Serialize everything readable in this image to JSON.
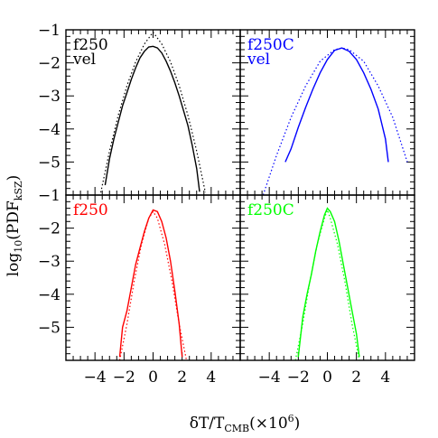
{
  "chart_data": {
    "type": "line",
    "layout": "2x2 panel grid, shared axes",
    "xlabel_parts": {
      "delta": "δ",
      "t": "T/T",
      "sub": "CMB",
      "factor": "(×10",
      "power": "6",
      "close": ")"
    },
    "ylabel_parts": {
      "func": "log",
      "base": "10",
      "open": "(PDF",
      "sub": "kSZ",
      "close": ")"
    },
    "xlim": [
      -6,
      6
    ],
    "ylim": [
      -6,
      -1
    ],
    "x_ticks": [
      -4,
      -2,
      0,
      2,
      4
    ],
    "x_tick_labels": [
      "−4",
      "−2",
      "0",
      "2",
      "4"
    ],
    "y_ticks": [
      -1,
      -2,
      -3,
      -4,
      -5
    ],
    "y_tick_labels": [
      "−1",
      "−2",
      "−3",
      "−4",
      "−5"
    ],
    "grid": false,
    "panels": [
      {
        "id": "top-left",
        "row": 0,
        "col": 0,
        "label_lines": [
          "f250",
          "vel"
        ],
        "color": "#000000",
        "series": [
          {
            "style": "solid",
            "x": [
              -3.3,
              -3.0,
              -2.7,
              -2.4,
              -2.1,
              -1.8,
              -1.5,
              -1.2,
              -0.9,
              -0.6,
              -0.3,
              0.0,
              0.3,
              0.6,
              0.9,
              1.2,
              1.5,
              1.8,
              2.1,
              2.4,
              2.7,
              3.0,
              3.2
            ],
            "y": [
              -5.7,
              -4.9,
              -4.3,
              -3.8,
              -3.3,
              -2.9,
              -2.5,
              -2.15,
              -1.85,
              -1.65,
              -1.52,
              -1.5,
              -1.55,
              -1.7,
              -1.95,
              -2.25,
              -2.6,
              -3.0,
              -3.45,
              -3.9,
              -4.5,
              -5.2,
              -5.9
            ]
          },
          {
            "style": "dotted",
            "x": [
              -3.6,
              -3.0,
              -2.4,
              -1.8,
              -1.2,
              -0.6,
              0.0,
              0.6,
              1.2,
              1.8,
              2.4,
              3.0,
              3.6
            ],
            "y": [
              -5.92,
              -4.67,
              -3.59,
              -2.69,
              -1.97,
              -1.43,
              -1.07,
              -1.43,
              -1.97,
              -2.69,
              -3.59,
              -4.67,
              -5.92
            ]
          }
        ]
      },
      {
        "id": "top-right",
        "row": 0,
        "col": 1,
        "label_lines": [
          "f250C",
          "vel"
        ],
        "color": "#0000ff",
        "series": [
          {
            "style": "solid",
            "x": [
              -2.9,
              -2.5,
              -2.0,
              -1.5,
              -1.0,
              -0.5,
              0.0,
              0.5,
              1.0,
              1.5,
              2.0,
              2.5,
              3.0,
              3.5,
              4.0,
              4.2
            ],
            "y": [
              -5.0,
              -4.6,
              -3.95,
              -3.35,
              -2.8,
              -2.3,
              -1.9,
              -1.62,
              -1.55,
              -1.65,
              -1.9,
              -2.3,
              -2.8,
              -3.4,
              -4.3,
              -5.0
            ]
          },
          {
            "style": "dotted",
            "x": [
              -4.5,
              -3.5,
              -2.5,
              -1.5,
              -0.5,
              0.5,
              1.0,
              1.5,
              2.5,
              3.5,
              4.5,
              5.5
            ],
            "y": [
              -6.1,
              -4.8,
              -3.65,
              -2.7,
              -1.95,
              -1.6,
              -1.55,
              -1.6,
              -1.95,
              -2.7,
              -3.65,
              -5.0
            ]
          }
        ]
      },
      {
        "id": "bottom-left",
        "row": 1,
        "col": 0,
        "label_lines": [
          "f250"
        ],
        "color": "#ff0000",
        "series": [
          {
            "style": "solid",
            "x": [
              -2.3,
              -2.1,
              -1.8,
              -1.5,
              -1.2,
              -0.9,
              -0.6,
              -0.3,
              0.0,
              0.3,
              0.6,
              0.9,
              1.2,
              1.5,
              1.8,
              2.0
            ],
            "y": [
              -5.9,
              -5.0,
              -4.5,
              -3.8,
              -3.1,
              -2.6,
              -2.1,
              -1.7,
              -1.45,
              -1.5,
              -1.8,
              -2.3,
              -3.0,
              -3.9,
              -4.9,
              -5.9
            ]
          },
          {
            "style": "dotted",
            "x": [
              -2.3,
              -1.8,
              -1.3,
              -0.8,
              -0.3,
              0.0,
              0.3,
              0.8,
              1.3,
              1.8,
              2.3
            ],
            "y": [
              -6.0,
              -4.9,
              -3.6,
              -2.5,
              -1.7,
              -1.5,
              -1.7,
              -2.5,
              -3.6,
              -4.9,
              -6.0
            ]
          }
        ]
      },
      {
        "id": "bottom-right",
        "row": 1,
        "col": 1,
        "label_lines": [
          "f250C"
        ],
        "color": "#00ff00",
        "series": [
          {
            "style": "solid",
            "x": [
              -2.0,
              -1.7,
              -1.4,
              -1.1,
              -0.8,
              -0.5,
              -0.2,
              0.0,
              0.2,
              0.5,
              0.8,
              1.1,
              1.4,
              1.7,
              2.0,
              2.2
            ],
            "y": [
              -5.9,
              -4.7,
              -4.0,
              -3.4,
              -2.7,
              -2.1,
              -1.6,
              -1.4,
              -1.5,
              -1.8,
              -2.4,
              -3.1,
              -3.8,
              -4.5,
              -5.2,
              -5.9
            ]
          },
          {
            "style": "dotted",
            "x": [
              -2.2,
              -1.7,
              -1.2,
              -0.7,
              -0.2,
              0.0,
              0.2,
              0.7,
              1.2,
              1.7,
              2.2
            ],
            "y": [
              -6.0,
              -4.9,
              -3.6,
              -2.5,
              -1.7,
              -1.45,
              -1.7,
              -2.5,
              -3.6,
              -4.9,
              -6.0
            ]
          }
        ]
      }
    ]
  }
}
